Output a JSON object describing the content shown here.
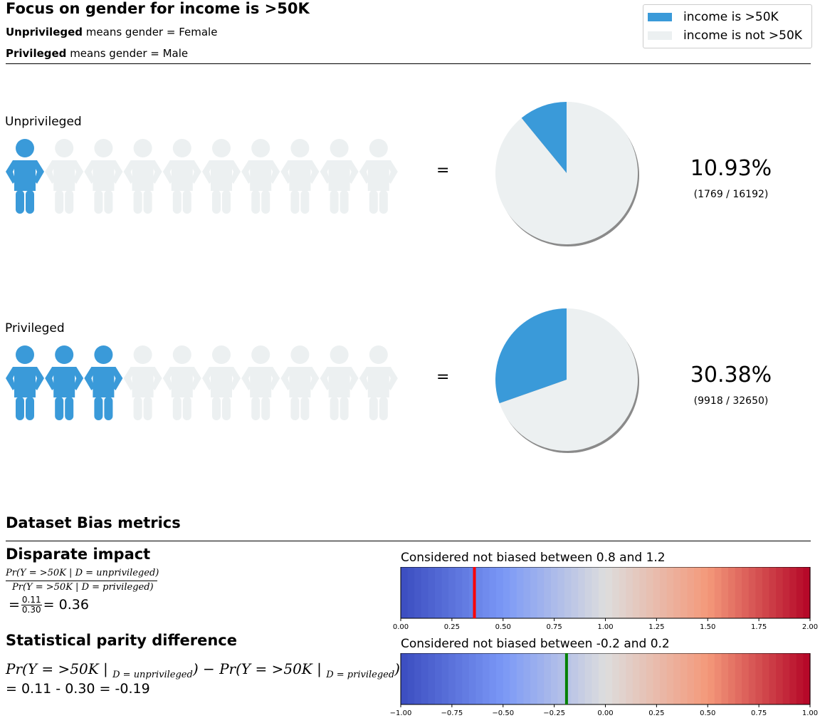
{
  "header": {
    "title": "Focus on gender for income is >50K",
    "unprivileged_bold": "Unprivileged",
    "unprivileged_rest": " means gender = Female",
    "privileged_bold": "Privileged",
    "privileged_rest": " means gender = Male"
  },
  "legend": {
    "items": [
      {
        "label": "income is >50K",
        "color": "#3a9ad9"
      },
      {
        "label": "income is not >50K",
        "color": "#ecf0f1"
      }
    ]
  },
  "colors": {
    "positive": "#3a9ad9",
    "negative": "#ecf0f1"
  },
  "groups": [
    {
      "label": "Unprivileged",
      "equals": "=",
      "icons_filled": 1,
      "icons_total": 10,
      "percent_text": "10.93%",
      "count_text": "(1769 / 16192)",
      "fraction": 0.1093
    },
    {
      "label": "Privileged",
      "equals": "=",
      "icons_filled": 3,
      "icons_total": 10,
      "percent_text": "30.38%",
      "count_text": "(9918 / 32650)",
      "fraction": 0.3038
    }
  ],
  "metrics": {
    "section_title": "Dataset Bias metrics",
    "disparate_impact": {
      "title": "Disparate impact",
      "formula_num": "Pr(Y = >50K | D = unprivileged)",
      "formula_den": "Pr(Y = >50K | D = privileged)",
      "result_prefix": "=",
      "frac_num": "0.11",
      "frac_den": "0.30",
      "result_suffix": "= 0.36",
      "gauge_title": "Considered not biased between 0.8 and 1.2",
      "marker_color": "#ff0000"
    },
    "statistical_parity": {
      "title": "Statistical parity difference",
      "formula_part1": "Pr(Y = >50K | ",
      "formula_sub1": "D = unprivileged",
      "formula_part2": ") − Pr(Y = >50K | ",
      "formula_sub2": "D = privileged",
      "formula_part3": ")",
      "result": "= 0.11 - 0.30 = -0.19",
      "gauge_title": "Considered not biased between -0.2 and 0.2",
      "marker_color": "#008000"
    }
  },
  "chart_data": [
    {
      "type": "pie",
      "name": "Unprivileged",
      "labels": [
        "income is >50K",
        "income is not >50K"
      ],
      "values": [
        10.93,
        89.07
      ]
    },
    {
      "type": "pie",
      "name": "Privileged",
      "labels": [
        "income is >50K",
        "income is not >50K"
      ],
      "values": [
        30.38,
        69.62
      ]
    },
    {
      "type": "gauge",
      "name": "Disparate impact",
      "xlim": [
        0,
        2
      ],
      "ticks": [
        "0.00",
        "0.25",
        "0.50",
        "0.75",
        "1.00",
        "1.25",
        "1.50",
        "1.75",
        "2.00"
      ],
      "marker": 0.36
    },
    {
      "type": "gauge",
      "name": "Statistical parity difference",
      "xlim": [
        -1,
        1
      ],
      "ticks": [
        "−1.00",
        "−0.75",
        "−0.50",
        "−0.25",
        "0.00",
        "0.25",
        "0.50",
        "0.75",
        "1.00"
      ],
      "marker": -0.19
    }
  ]
}
